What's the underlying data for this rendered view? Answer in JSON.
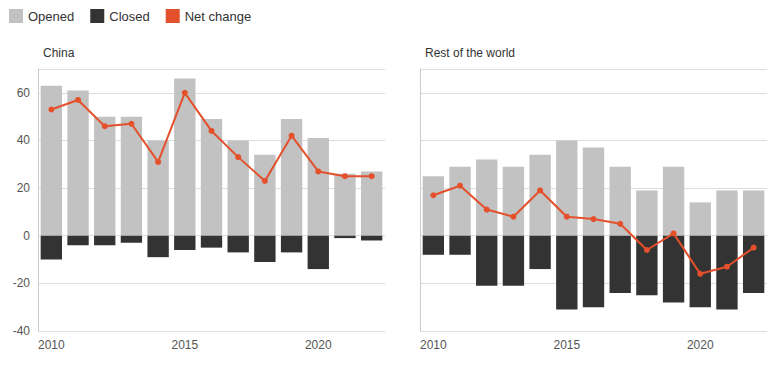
{
  "chart_data": [
    {
      "type": "bar",
      "title": "China",
      "categories": [
        "2010",
        null,
        null,
        null,
        null,
        "2015",
        null,
        null,
        null,
        null,
        "2020",
        null,
        null
      ],
      "series": [
        {
          "name": "Opened",
          "type": "bar",
          "color": "#c2c2c2",
          "values": [
            63,
            61,
            50,
            50,
            40,
            66,
            49,
            40,
            34,
            49,
            41,
            26,
            27
          ]
        },
        {
          "name": "Closed",
          "type": "bar",
          "color": "#333333",
          "values": [
            -10,
            -4,
            -4,
            -3,
            -9,
            -6,
            -5,
            -7,
            -11,
            -7,
            -14,
            -1,
            -2
          ]
        },
        {
          "name": "Net change",
          "type": "line",
          "color": "#e4502b",
          "marker": "circle",
          "values": [
            53,
            57,
            46,
            47,
            31,
            60,
            44,
            33,
            23,
            42,
            27,
            25,
            25
          ]
        }
      ],
      "ylim": [
        -40,
        70
      ],
      "yticks": [
        -40,
        -20,
        0,
        20,
        40,
        60
      ],
      "grid": true,
      "stacked": true,
      "legend": "top-left"
    },
    {
      "type": "bar",
      "title": "Rest of the world",
      "categories": [
        "2010",
        null,
        null,
        null,
        null,
        "2015",
        null,
        null,
        null,
        null,
        "2020",
        null,
        null
      ],
      "series": [
        {
          "name": "Opened",
          "type": "bar",
          "color": "#c2c2c2",
          "values": [
            25,
            29,
            32,
            29,
            34,
            40,
            37,
            29,
            19,
            29,
            14,
            19,
            19
          ]
        },
        {
          "name": "Closed",
          "type": "bar",
          "color": "#333333",
          "values": [
            -8,
            -8,
            -21,
            -21,
            -14,
            -31,
            -30,
            -24,
            -25,
            -28,
            -30,
            -31,
            -24
          ]
        },
        {
          "name": "Net change",
          "type": "line",
          "color": "#e4502b",
          "marker": "circle",
          "values": [
            17,
            21,
            11,
            8,
            19,
            8,
            7,
            5,
            -6,
            1,
            -16,
            -13,
            -5
          ]
        }
      ],
      "ylim": [
        -40,
        70
      ],
      "yticks": [
        -40,
        -20,
        0,
        20,
        40,
        60
      ],
      "grid": true,
      "stacked": true,
      "tick_labels": "x"
    }
  ]
}
